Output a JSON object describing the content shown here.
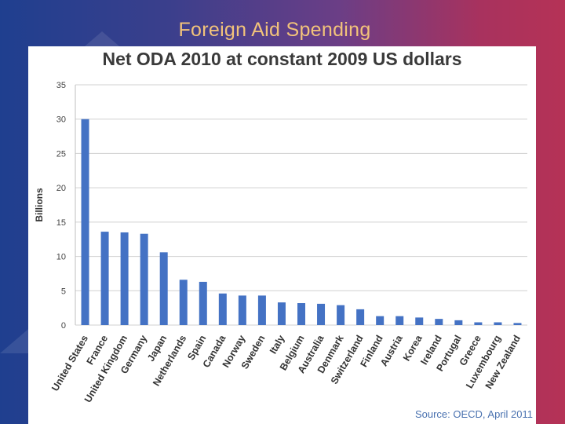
{
  "slide": {
    "title": "Foreign Aid Spending"
  },
  "chart_data": {
    "type": "bar",
    "title": "Net ODA 2010 at constant 2009 US dollars",
    "ylabel": "Billions",
    "xlabel": "",
    "ylim": [
      0,
      35
    ],
    "yticks": [
      0,
      5,
      10,
      15,
      20,
      25,
      30,
      35
    ],
    "grid": true,
    "categories": [
      "United States",
      "France",
      "United Kingdom",
      "Germany",
      "Japan",
      "Netherlands",
      "Spain",
      "Canada",
      "Norway",
      "Sweden",
      "Italy",
      "Belgium",
      "Australia",
      "Denmark",
      "Switzerland",
      "Finland",
      "Austria",
      "Korea",
      "Ireland",
      "Portugal",
      "Greece",
      "Luxembourg",
      "New Zealand"
    ],
    "values": [
      30.0,
      13.6,
      13.5,
      13.3,
      10.6,
      6.6,
      6.3,
      4.6,
      4.3,
      4.3,
      3.3,
      3.2,
      3.1,
      2.9,
      2.3,
      1.3,
      1.3,
      1.1,
      0.9,
      0.7,
      0.4,
      0.4,
      0.3
    ],
    "bar_color": "#4472c4",
    "source": "Source: OECD, April 2011"
  }
}
